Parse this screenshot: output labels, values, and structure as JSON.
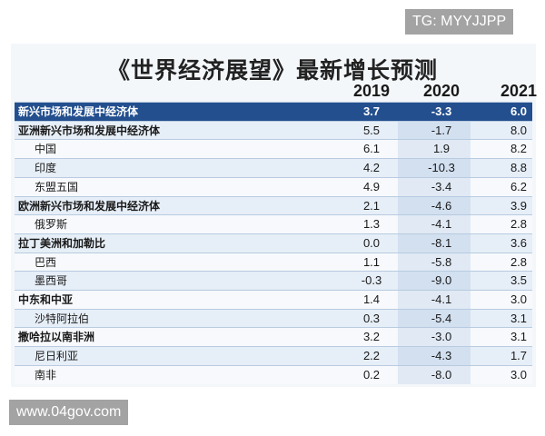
{
  "watermark_top": "TG: MYYJJPP",
  "watermark_bottom": "www.04gov.com",
  "title": "《世界经济展望》最新增长预测",
  "years": [
    "2019",
    "2020",
    "2021"
  ],
  "total": {
    "name": "新兴市场和发展中经济体",
    "values": [
      "3.7",
      "-3.3",
      "6.0"
    ]
  },
  "groups": [
    {
      "name": "亚洲新兴市场和发展中经济体",
      "values": [
        "5.5",
        "-1.7",
        "8.0"
      ],
      "members": [
        {
          "name": "中国",
          "values": [
            "6.1",
            "1.9",
            "8.2"
          ]
        },
        {
          "name": "印度",
          "values": [
            "4.2",
            "-10.3",
            "8.8"
          ]
        },
        {
          "name": "东盟五国",
          "values": [
            "4.9",
            "-3.4",
            "6.2"
          ]
        }
      ]
    },
    {
      "name": "欧洲新兴市场和发展中经济体",
      "values": [
        "2.1",
        "-4.6",
        "3.9"
      ],
      "members": [
        {
          "name": "俄罗斯",
          "values": [
            "1.3",
            "-4.1",
            "2.8"
          ]
        }
      ]
    },
    {
      "name": "拉丁美洲和加勒比",
      "values": [
        "0.0",
        "-8.1",
        "3.6"
      ],
      "members": [
        {
          "name": "巴西",
          "values": [
            "1.1",
            "-5.8",
            "2.8"
          ]
        },
        {
          "name": "墨西哥",
          "values": [
            "-0.3",
            "-9.0",
            "3.5"
          ]
        }
      ]
    },
    {
      "name": "中东和中亚",
      "values": [
        "1.4",
        "-4.1",
        "3.0"
      ],
      "members": [
        {
          "name": "沙特阿拉伯",
          "values": [
            "0.3",
            "-5.4",
            "3.1"
          ]
        }
      ]
    },
    {
      "name": "撒哈拉以南非洲",
      "values": [
        "3.2",
        "-3.0",
        "3.1"
      ],
      "members": [
        {
          "name": "尼日利亚",
          "values": [
            "2.2",
            "-4.3",
            "1.7"
          ]
        },
        {
          "name": "南非",
          "values": [
            "0.2",
            "-8.0",
            "3.0"
          ]
        }
      ]
    }
  ]
}
